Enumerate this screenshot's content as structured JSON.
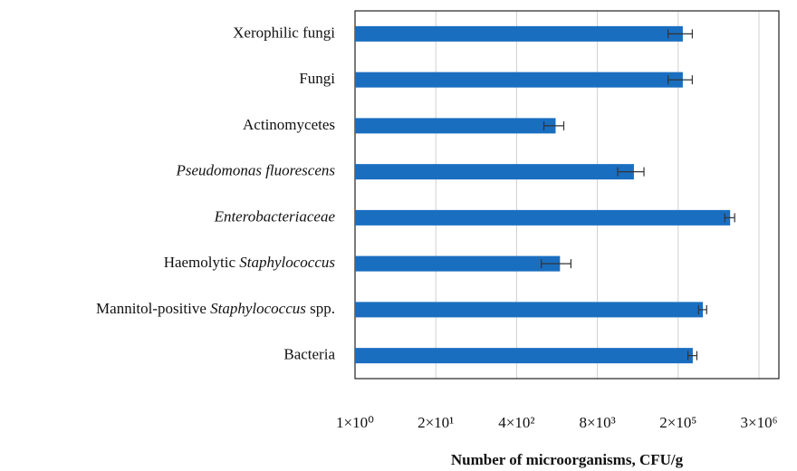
{
  "chart_data": {
    "type": "barh",
    "log_x": true,
    "grid": true,
    "color": "#1a6ec0",
    "xlabel": "Number of microorganisms, CFU/g",
    "categories": [
      [
        {
          "text": "Xerophilic fungi",
          "italic": false
        }
      ],
      [
        {
          "text": "Fungi",
          "italic": false
        }
      ],
      [
        {
          "text": "Actinomycetes",
          "italic": false
        }
      ],
      [
        {
          "text": "Pseudomonas fluorescens",
          "italic": true
        }
      ],
      [
        {
          "text": "Enterobacteriaceae",
          "italic": true
        }
      ],
      [
        {
          "text": "Haemolytic ",
          "italic": false
        },
        {
          "text": "Staphylococcus",
          "italic": true
        }
      ],
      [
        {
          "text": "Mannitol-positive ",
          "italic": false
        },
        {
          "text": "Staphylococcus",
          "italic": true
        },
        {
          "text": " spp.",
          "italic": false
        }
      ],
      [
        {
          "text": "Bacteria",
          "italic": false
        }
      ]
    ],
    "values": [
      190000,
      190000,
      1700,
      31000,
      1100000,
      2000,
      400000,
      275000
    ],
    "errors": [
      80000,
      80000,
      600,
      14000,
      200000,
      1000,
      60000,
      45000
    ],
    "xlim": [
      1,
      6700000
    ],
    "xticks": [
      {
        "value": 1,
        "label": "1×10⁰"
      },
      {
        "value": 20,
        "label": "2×10¹"
      },
      {
        "value": 400,
        "label": "4×10²"
      },
      {
        "value": 8000,
        "label": "8×10³"
      },
      {
        "value": 160000,
        "label": "2×10⁵"
      },
      {
        "value": 3200000,
        "label": "3×10⁶"
      }
    ]
  }
}
